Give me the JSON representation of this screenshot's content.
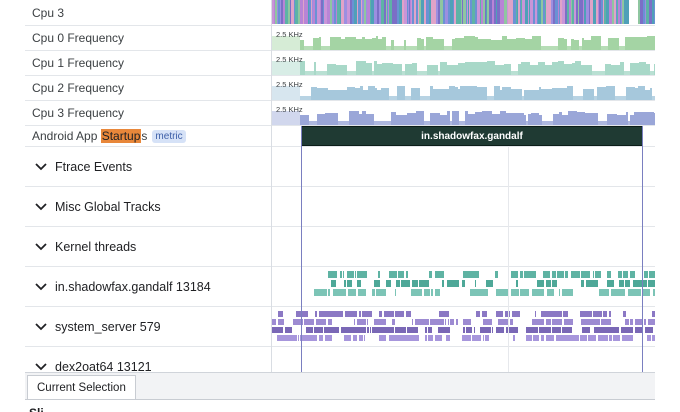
{
  "tracks": [
    {
      "label": "Cpu 3",
      "kind": "cpu"
    },
    {
      "label": "Cpu 0 Frequency",
      "kind": "freq",
      "scale": "2.5 KHz",
      "color": "#a4d4a4"
    },
    {
      "label": "Cpu 1 Frequency",
      "kind": "freq",
      "scale": "2.5 KHz",
      "color": "#a8d8c8"
    },
    {
      "label": "Cpu 2 Frequency",
      "kind": "freq",
      "scale": "2.5 KHz",
      "color": "#a6c8dc"
    },
    {
      "label": "Cpu 3 Frequency",
      "kind": "freq",
      "scale": "2.5 KHz",
      "color": "#9aa6d8"
    }
  ],
  "startup": {
    "label_before": "Android App ",
    "label_highlight": "Startup",
    "label_after": "s",
    "chip": "metric",
    "slice_name": "in.shadowfax.gandalf",
    "colors": {
      "slice": "#1f3a33",
      "highlight": "#e8873a"
    }
  },
  "groups": [
    {
      "label": "Ftrace Events",
      "icon": "chevron-down-icon"
    },
    {
      "label": "Misc Global Tracks",
      "icon": "chevron-down-icon"
    },
    {
      "label": "Kernel threads",
      "icon": "chevron-down-icon"
    },
    {
      "label": "in.shadowfax.gandalf 13184",
      "icon": "chevron-down-icon",
      "color": "#5fb3a3"
    },
    {
      "label": "system_server 579",
      "icon": "chevron-down-icon",
      "color": "#8b78c4"
    },
    {
      "label": "dex2oat64 13121",
      "icon": "chevron-down-icon"
    }
  ],
  "bottom_panel": {
    "tab_label": "Current Selection",
    "peek_text": "Sli"
  }
}
